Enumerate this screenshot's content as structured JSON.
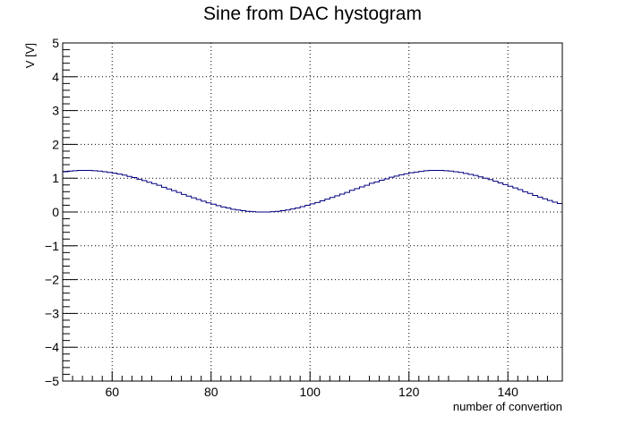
{
  "chart_data": {
    "type": "line",
    "style": "histogram-step",
    "title": "Sine from DAC hystogram",
    "xlabel": "number of convertion",
    "ylabel": "V [V]",
    "xlim": [
      50,
      151
    ],
    "ylim": [
      -5,
      5
    ],
    "x_ticks": [
      60,
      80,
      100,
      120,
      140
    ],
    "y_ticks": [
      -5,
      -4,
      -3,
      -2,
      -1,
      0,
      1,
      2,
      3,
      4,
      5
    ],
    "y_tick_labels": [
      "−5",
      "−4",
      "−3",
      "−2",
      "−1",
      "0",
      "1",
      "2",
      "3",
      "4",
      "5"
    ],
    "grid": true,
    "line_color": "#000080",
    "series": [
      {
        "x_start": 50,
        "bin_width": 1,
        "values": [
          1.19,
          1.21,
          1.22,
          1.23,
          1.23,
          1.23,
          1.22,
          1.21,
          1.19,
          1.17,
          1.15,
          1.12,
          1.09,
          1.05,
          1.02,
          0.97,
          0.93,
          0.88,
          0.84,
          0.79,
          0.73,
          0.68,
          0.63,
          0.58,
          0.52,
          0.47,
          0.42,
          0.37,
          0.32,
          0.27,
          0.23,
          0.19,
          0.15,
          0.12,
          0.08,
          0.06,
          0.04,
          0.02,
          0.01,
          0.0,
          0.0,
          0.0,
          0.01,
          0.02,
          0.04,
          0.06,
          0.09,
          0.12,
          0.16,
          0.2,
          0.24,
          0.28,
          0.33,
          0.38,
          0.43,
          0.48,
          0.53,
          0.58,
          0.64,
          0.69,
          0.74,
          0.79,
          0.85,
          0.89,
          0.94,
          0.98,
          1.03,
          1.06,
          1.1,
          1.13,
          1.16,
          1.18,
          1.2,
          1.22,
          1.23,
          1.23,
          1.23,
          1.22,
          1.21,
          1.19,
          1.17,
          1.14,
          1.11,
          1.08,
          1.04,
          1.0,
          0.96,
          0.91,
          0.86,
          0.81,
          0.76,
          0.71,
          0.66,
          0.6,
          0.55,
          0.49,
          0.44,
          0.39,
          0.34,
          0.29,
          0.25
        ]
      }
    ]
  }
}
